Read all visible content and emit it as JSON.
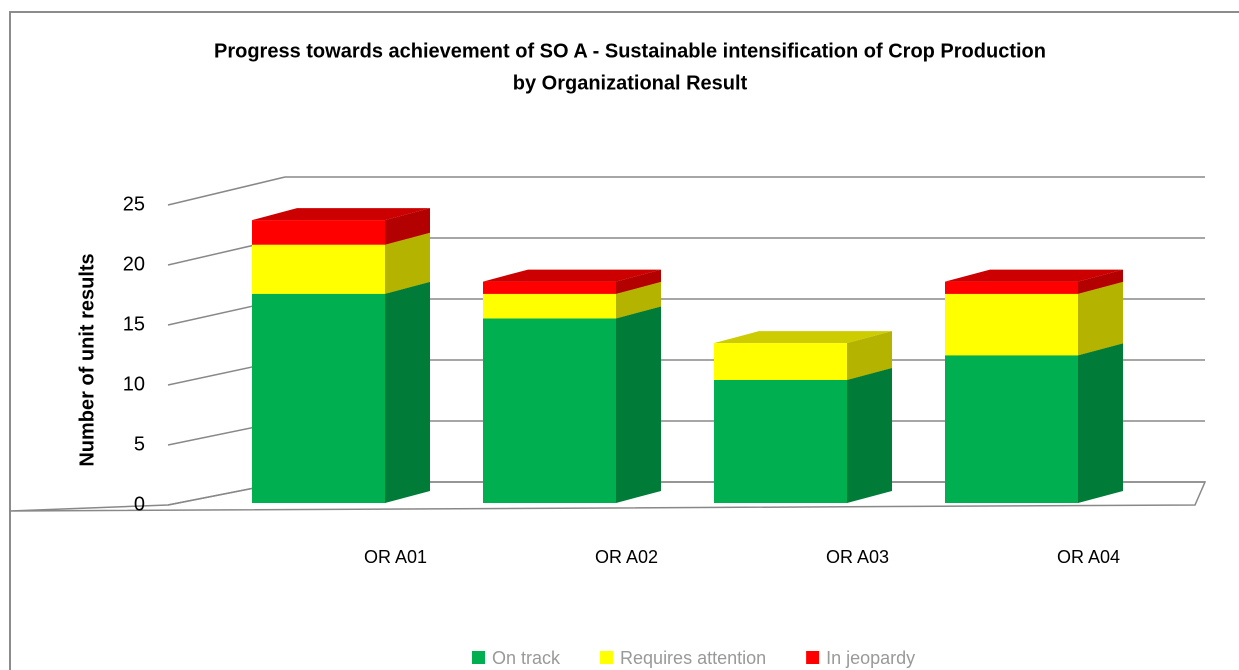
{
  "chart_data": {
    "type": "bar3d_stacked",
    "title": [
      "Progress towards achievement of  SO A - Sustainable  intensification of Crop Production",
      "by Organizational Result"
    ],
    "y_label": "Number of unit results",
    "categories": [
      "OR A01",
      "OR A02",
      "OR A03",
      "OR A04"
    ],
    "series": [
      {
        "name": "On track",
        "color": "#00b050",
        "values": [
          17,
          15,
          10,
          12
        ]
      },
      {
        "name": "Requires attention",
        "color": "#ffff00",
        "values": [
          4,
          2,
          3,
          5
        ]
      },
      {
        "name": "In jeopardy",
        "color": "#ff0000",
        "values": [
          2,
          1,
          0,
          1
        ]
      }
    ],
    "ylim": [
      0,
      25
    ],
    "yticks": [
      0,
      5,
      10,
      15,
      20,
      25
    ],
    "grid": true,
    "legend": "bottom"
  }
}
